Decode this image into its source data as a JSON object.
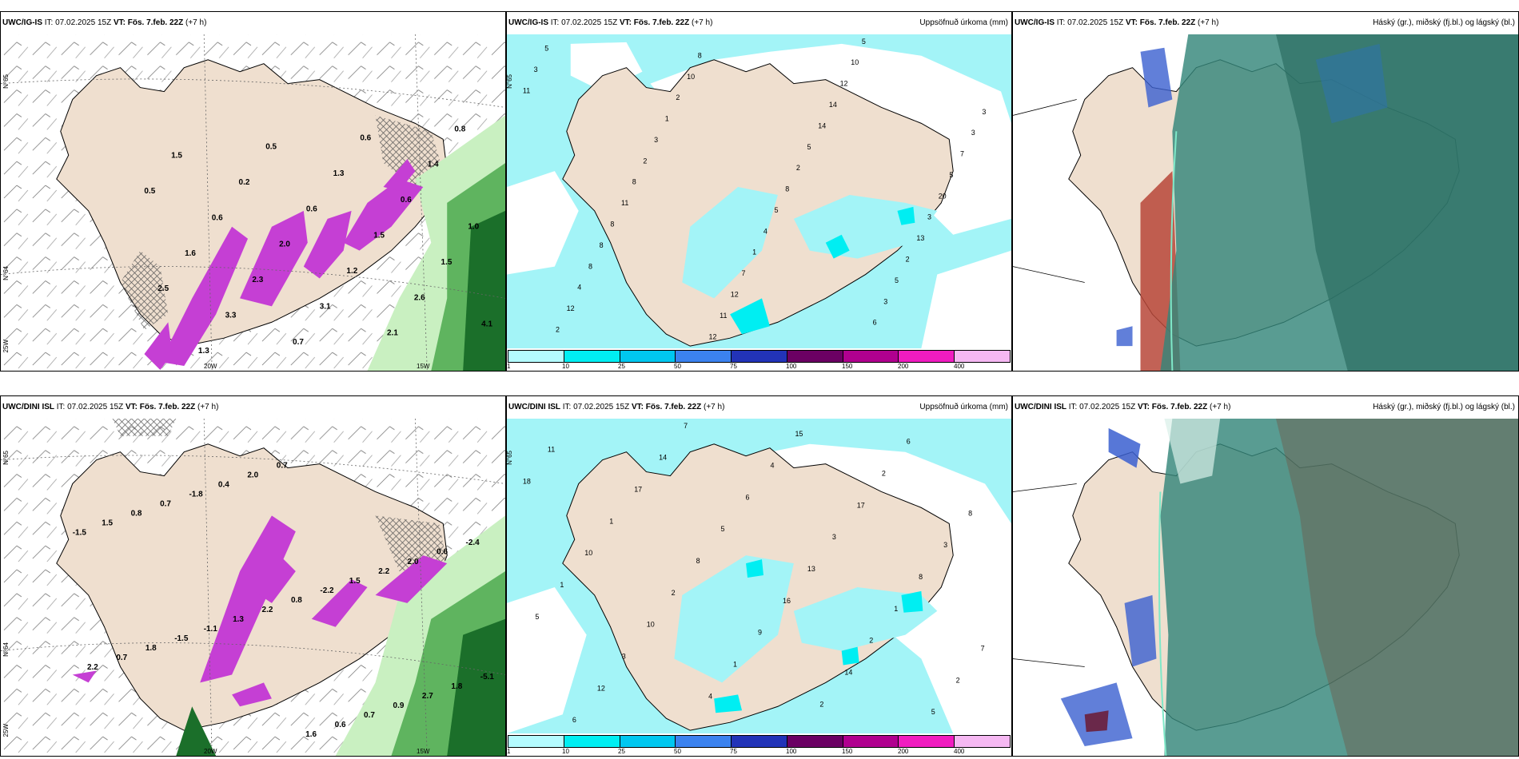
{
  "panels": [
    {
      "model": "UWC/IG-IS",
      "it_label": "IT: 07.02.2025 15Z",
      "vt_label": "VT: Fös. 7.feb. 22Z",
      "lead": "(+7 h)",
      "right_title": "",
      "coords": [
        "N°65",
        "N°64",
        "25W",
        "20W",
        "15W"
      ]
    },
    {
      "model": "UWC/IG-IS",
      "it_label": "IT: 07.02.2025 15Z",
      "vt_label": "VT: Fös. 7.feb. 22Z",
      "lead": "(+7 h)",
      "right_title": "Uppsöfnuð úrkoma (mm)",
      "coords": [
        "N°65"
      ],
      "point_values": [
        "11",
        "2",
        "4",
        "3",
        "3",
        "3",
        "5",
        "5",
        "5",
        "1",
        "8",
        "2",
        "2",
        "2",
        "2",
        "13",
        "12",
        "10",
        "5",
        "3",
        "4",
        "8",
        "14",
        "20",
        "8",
        "12",
        "14",
        "5",
        "8",
        "11",
        "12",
        "7",
        "8",
        "12",
        "10",
        "3",
        "11",
        "7",
        "5",
        "3",
        "8",
        "1",
        "6"
      ]
    },
    {
      "model": "UWC/IG-IS",
      "it_label": "IT: 07.02.2025 15Z",
      "vt_label": "VT: Fös. 7.feb. 22Z",
      "lead": "(+7 h)",
      "right_title": "Háský (gr.), miðský (fj.bl.) og lágský (bl.)"
    },
    {
      "model": "UWC/DINI ISL",
      "it_label": "IT: 07.02.2025 15Z",
      "vt_label": "VT: Fös. 7.feb. 22Z",
      "lead": "(+7 h)",
      "right_title": "",
      "coords": [
        "N°65",
        "N°64",
        "25W",
        "20W",
        "15W"
      ]
    },
    {
      "model": "UWC/DINI ISL",
      "it_label": "IT: 07.02.2025 15Z",
      "vt_label": "VT: Fös. 7.feb. 22Z",
      "lead": "(+7 h)",
      "right_title": "Uppsöfnuð úrkoma (mm)",
      "coords": [
        "N°65"
      ],
      "point_values": [
        "18",
        "16",
        "6",
        "3",
        "3",
        "2",
        "2",
        "5",
        "5",
        "7",
        "4",
        "1",
        "2",
        "1",
        "2",
        "14",
        "8",
        "4",
        "8",
        "9",
        "11",
        "13",
        "12",
        "17",
        "10",
        "6",
        "8",
        "2",
        "6",
        "5",
        "15",
        "10",
        "14",
        "17",
        "1",
        "7",
        "3",
        "1"
      ]
    },
    {
      "model": "UWC/DINI ISL",
      "it_label": "IT: 07.02.2025 15Z",
      "vt_label": "VT: Fös. 7.feb. 22Z",
      "lead": "(+7 h)",
      "right_title": "Háský (gr.), miðský (fj.bl.) og lágský (bl.)"
    }
  ],
  "temp_labels_top": [
    "0.5",
    "0.6",
    "0.6",
    "0.6",
    "1.0",
    "1.5",
    "2.0",
    "1.6",
    "1.5",
    "1.2",
    "2.3",
    "2.5",
    "2.6",
    "3.1",
    "3.3",
    "4.1",
    "2.1",
    "0.7",
    "1.3",
    "0.8",
    "0.6",
    "0.5",
    "1.5",
    "1.4",
    "1.3",
    "0.2"
  ],
  "temp_labels_bottom": [
    "-1.5",
    "0.4",
    "0.7",
    "2.2",
    "1.3",
    "2.2",
    "1.5",
    "2.0",
    "0.9",
    "0.7",
    "2.2",
    "2.0",
    "0.8",
    "0.7",
    "2.7",
    "1.8",
    "0.8",
    "0.6",
    "0.7",
    "1.6",
    "1.8",
    "-1.5",
    "-2.2",
    "-2.4",
    "-1.8",
    "0.6",
    "-5.1",
    "-1.1",
    "1.5"
  ],
  "colorbar": {
    "ticks": [
      "1",
      "10",
      "25",
      "50",
      "75",
      "100",
      "150",
      "200",
      "400"
    ],
    "colors": [
      "#b4fbff",
      "#00eef2",
      "#00c7f0",
      "#3b82ef",
      "#2233b8",
      "#6b0063",
      "#b0008f",
      "#f01cc0",
      "#f5b8f2"
    ]
  },
  "colors": {
    "land": "#efdfcf",
    "precip_light": "#a3f4f7",
    "snow_magenta": "#c53fd4",
    "rain_green_light": "#c9f0c1",
    "rain_green_dark": "#1b6f2a",
    "cloud_high": "#35867a",
    "cloud_mid": "#3a5fd0",
    "cloud_low": "#b74738"
  }
}
